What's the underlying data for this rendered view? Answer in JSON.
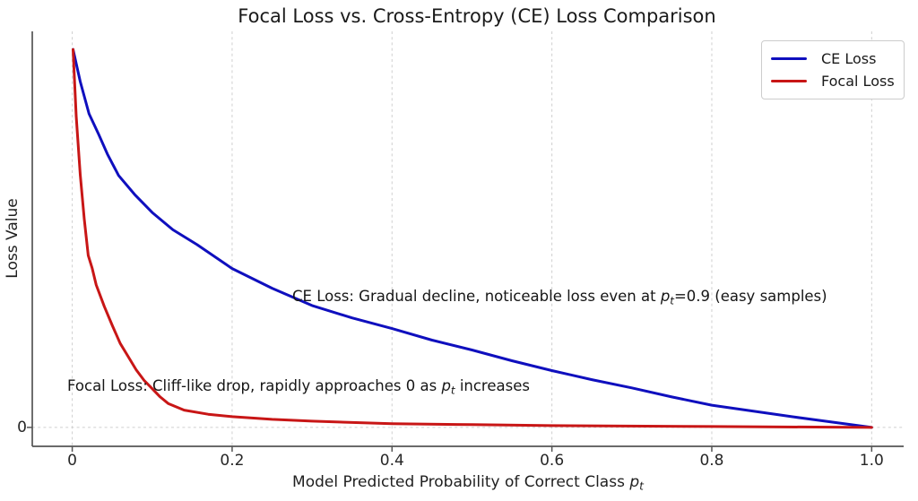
{
  "title": "Focal Loss vs. Cross-Entropy (CE) Loss Comparison",
  "axes": {
    "ylabel": "Loss Value",
    "xlabel_prefix": "Model Predicted Probability of Correct Class ",
    "p_symbol": "p",
    "p_subscript": "t",
    "x_tick_labels": [
      "0",
      "0.2",
      "0.4",
      "0.6",
      "0.8",
      "1.0"
    ],
    "x_tick_values": [
      0,
      0.2,
      0.4,
      0.6,
      0.8,
      1.0
    ],
    "y_tick_labels": [
      "0"
    ],
    "y_tick_values": [
      0
    ]
  },
  "legend": {
    "items": [
      {
        "label": "CE Loss",
        "color": "#0f0fbe"
      },
      {
        "label": "Focal Loss",
        "color": "#c81616"
      }
    ]
  },
  "annotations": {
    "ce": {
      "prefix": "CE Loss: Gradual decline, noticeable loss even at ",
      "p": "p",
      "sub": "t",
      "suffix": "=0.9 (easy samples)"
    },
    "focal": {
      "prefix": "Focal Loss: Cliff-like drop, rapidly approaches 0 as ",
      "p": "p",
      "sub": "t",
      "suffix": " increases"
    }
  },
  "chart_data": {
    "type": "line",
    "title": "Focal Loss vs. Cross-Entropy (CE) Loss Comparison",
    "xlabel": "Model Predicted Probability of Correct Class p_t",
    "ylabel": "Loss Value",
    "xlim": [
      -0.05,
      1.04
    ],
    "ylim": [
      -0.23,
      4.81
    ],
    "grid": true,
    "grid_style": "dashed",
    "legend_position": "upper right",
    "x_ticks": [
      0,
      0.2,
      0.4,
      0.6,
      0.8,
      1.0
    ],
    "y_ticks": [
      0
    ],
    "series": [
      {
        "name": "CE Loss",
        "color": "#0f0fbe",
        "x": [
          0.001,
          0.01,
          0.021,
          0.033,
          0.044,
          0.058,
          0.078,
          0.1,
          0.126,
          0.156,
          0.2,
          0.25,
          0.3,
          0.35,
          0.4,
          0.45,
          0.5,
          0.55,
          0.6,
          0.65,
          0.7,
          0.75,
          0.8,
          0.85,
          0.9,
          0.95,
          1.0
        ],
        "y": [
          4.59,
          4.2,
          3.81,
          3.56,
          3.32,
          3.06,
          2.83,
          2.61,
          2.4,
          2.22,
          1.93,
          1.69,
          1.48,
          1.33,
          1.2,
          1.06,
          0.94,
          0.81,
          0.69,
          0.58,
          0.48,
          0.37,
          0.27,
          0.2,
          0.13,
          0.065,
          0.0
        ]
      },
      {
        "name": "Focal Loss",
        "color": "#c81616",
        "x": [
          0.001,
          0.005,
          0.01,
          0.015,
          0.02,
          0.025,
          0.03,
          0.04,
          0.05,
          0.06,
          0.07,
          0.08,
          0.09,
          0.1,
          0.11,
          0.12,
          0.14,
          0.17,
          0.2,
          0.25,
          0.3,
          0.4,
          0.5,
          0.6,
          0.8,
          1.0
        ],
        "y": [
          4.59,
          3.78,
          3.07,
          2.53,
          2.09,
          1.93,
          1.73,
          1.47,
          1.24,
          1.02,
          0.86,
          0.7,
          0.57,
          0.47,
          0.37,
          0.29,
          0.21,
          0.16,
          0.13,
          0.098,
          0.076,
          0.044,
          0.033,
          0.022,
          0.011,
          0.0
        ]
      }
    ],
    "annotations": [
      {
        "text": "CE Loss: Gradual decline, noticeable loss even at p_t=0.9 (easy samples)",
        "x": 0.28,
        "y": 1.55
      },
      {
        "text": "Focal Loss: Cliff-like drop, rapidly approaches 0 as p_t increases",
        "x": 0.0,
        "y": 0.47
      }
    ]
  },
  "style": {
    "spine_color": "#555555",
    "grid_color": "#cfcfcf",
    "background": "#ffffff"
  }
}
